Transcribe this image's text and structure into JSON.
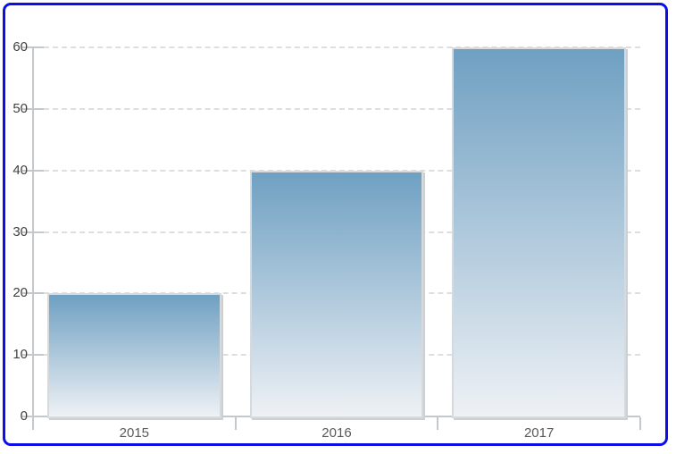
{
  "chart_data": {
    "type": "bar",
    "title": "",
    "categories": [
      "2015",
      "2016",
      "2017"
    ],
    "values": [
      20,
      40,
      60
    ],
    "xlabel": "",
    "ylabel": "",
    "ylim": [
      0,
      60
    ],
    "yticks": [
      0,
      10,
      20,
      30,
      40,
      50,
      60
    ],
    "grid": "horizontal-dashed",
    "legend_position": "none",
    "colors": {
      "frame_border": "#0D0DE8",
      "bar_gradient_top": "#6FA0C2",
      "bar_gradient_bottom": "#EEF1F5",
      "bar_border": "#D7DADD",
      "bar_shadow": "#CBD0D4",
      "axis": "#C5C8CB",
      "gridline": "#DCDEE0",
      "y_tick_label": "#414143",
      "category_label": "#58595B",
      "background": "#FFFFFF"
    }
  }
}
